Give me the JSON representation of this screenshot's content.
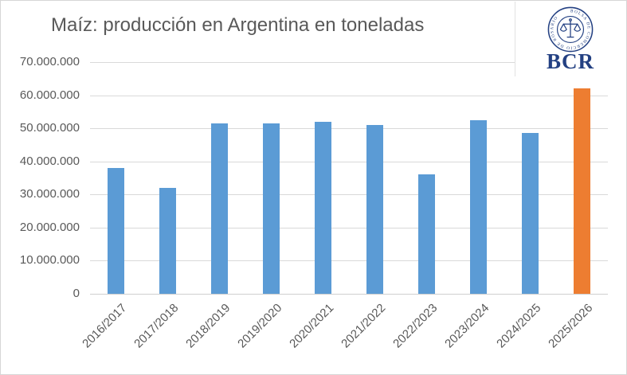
{
  "header": {
    "title": "Maíz: producción en Argentina en toneladas"
  },
  "logo": {
    "abbrev": "BCR",
    "ring_text": "BOLSA DE COMERCIO DE ROSARIO",
    "color": "#234082"
  },
  "chart_data": {
    "type": "bar",
    "title": "Maíz: producción en Argentina en toneladas",
    "unit": "toneladas",
    "categories": [
      "2016/2017",
      "2017/2018",
      "2018/2019",
      "2019/2020",
      "2020/2021",
      "2021/2022",
      "2022/2023",
      "2023/2024",
      "2024/2025",
      "2025/2026"
    ],
    "values": [
      38000000,
      32000000,
      51500000,
      51500000,
      52000000,
      51000000,
      36000000,
      52500000,
      48500000,
      62000000
    ],
    "bar_default_color": "#5B9BD5",
    "bar_highlight_color": "#ED7D31",
    "highlight_index": 9,
    "ylim": [
      0,
      70000000
    ],
    "ytick_step": 10000000,
    "ytick_labels_top_to_bottom": [
      "70.000.000",
      "60.000.000",
      "50.000.000",
      "40.000.000",
      "30.000.000",
      "20.000.000",
      "10.000.000",
      "0"
    ],
    "grid": true,
    "legend": "none",
    "gridline_color": "#d9d9d9",
    "axis_text_color": "#595959",
    "title_color": "#595959"
  }
}
